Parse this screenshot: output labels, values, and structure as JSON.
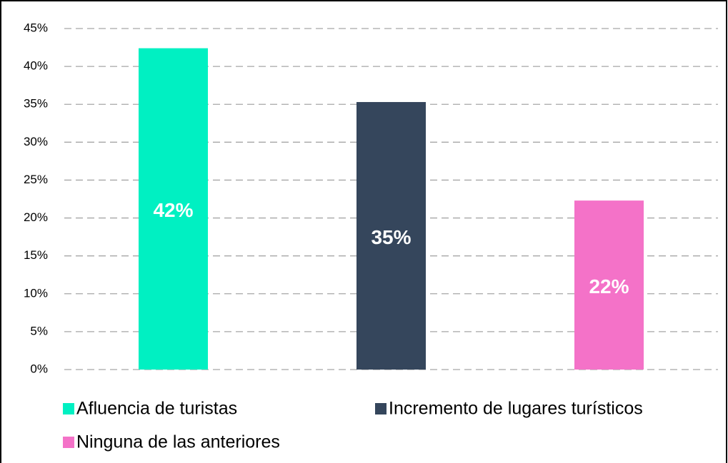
{
  "chart_data": {
    "type": "bar",
    "categories": [
      "Afluencia de turistas",
      "Incremento de lugares turísticos",
      "Ninguna de las anteriores"
    ],
    "values": [
      42.4,
      35.3,
      22.3
    ],
    "value_labels": [
      "42%",
      "35%",
      "22%"
    ],
    "colors": [
      "#00f0c2",
      "#35465c",
      "#f472c8"
    ],
    "ylim": [
      0,
      45
    ],
    "yticks": [
      {
        "value": 0,
        "label": "0%"
      },
      {
        "value": 5,
        "label": "5%"
      },
      {
        "value": 10,
        "label": "10%"
      },
      {
        "value": 15,
        "label": "15%"
      },
      {
        "value": 20,
        "label": "20%"
      },
      {
        "value": 25,
        "label": "25%"
      },
      {
        "value": 30,
        "label": "30%"
      },
      {
        "value": 35,
        "label": "35%"
      },
      {
        "value": 40,
        "label": "40%"
      },
      {
        "value": 45,
        "label": "45%"
      }
    ],
    "grid": true
  }
}
